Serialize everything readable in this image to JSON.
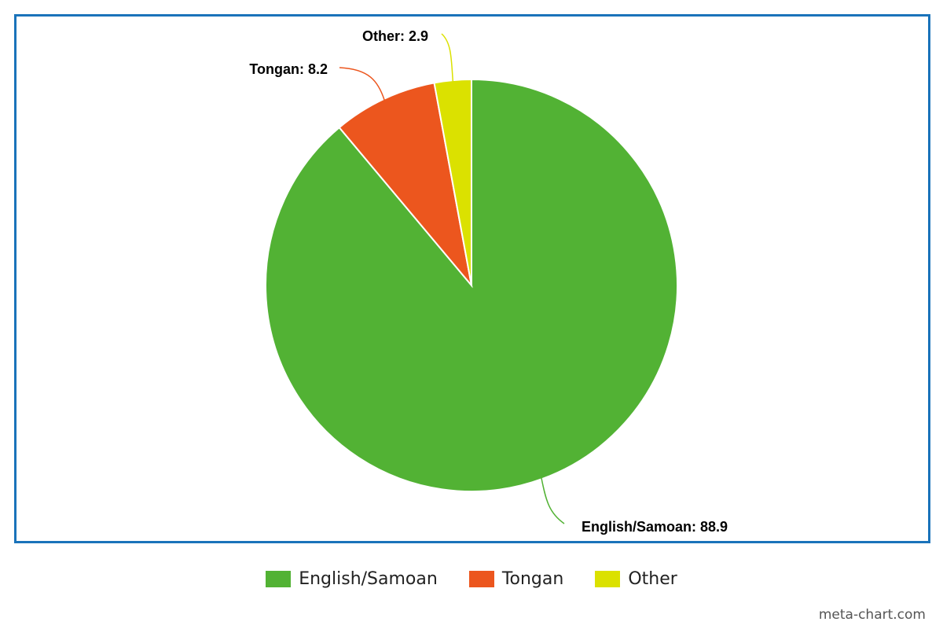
{
  "chart_data": {
    "type": "pie",
    "title": "",
    "slices": [
      {
        "label": "English/Samoan",
        "value": 88.9,
        "color": "#52b234",
        "data_label": "English/Samoan: 88.9"
      },
      {
        "label": "Tongan",
        "value": 8.2,
        "color": "#ec561e",
        "data_label": "Tongan: 8.2"
      },
      {
        "label": "Other",
        "value": 2.9,
        "color": "#dbe100",
        "data_label": "Other: 2.9"
      }
    ],
    "legend_position": "bottom",
    "frame_color": "#1a73ba"
  },
  "legend": {
    "items": [
      {
        "label": "English/Samoan",
        "color": "#52b234"
      },
      {
        "label": "Tongan",
        "color": "#ec561e"
      },
      {
        "label": "Other",
        "color": "#dbe100"
      }
    ]
  },
  "watermark": "meta-chart.com"
}
